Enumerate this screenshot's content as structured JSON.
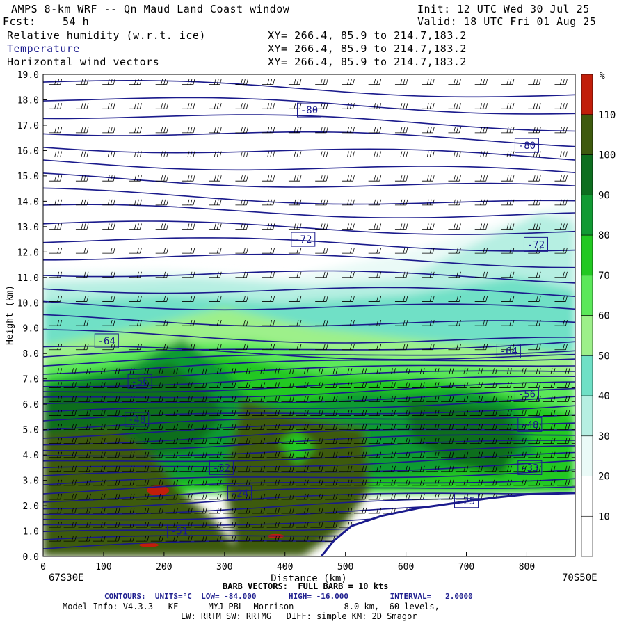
{
  "header": {
    "title": "AMPS 8-km WRF -- Qn Maud Land Coast window",
    "init": "Init: 12 UTC Wed 30 Jul 25",
    "fcst_label": "Fcst:",
    "fcst_value": "54 h",
    "valid": "Valid: 18 UTC Fri 01 Aug 25",
    "fields": [
      {
        "name": "Relative humidity (w.r.t. ice)",
        "xy": "XY= 266.4, 85.9 to 214.7,183.2"
      },
      {
        "name": "Temperature",
        "xy": "XY= 266.4, 85.9 to 214.7,183.2"
      },
      {
        "name": "Horizontal wind vectors",
        "xy": "XY= 266.4, 85.9 to 214.7,183.2"
      }
    ]
  },
  "chart_data": {
    "type": "cross-section",
    "xlabel": "Distance (km)",
    "ylabel": "Height (km)",
    "xlim": [
      0,
      880
    ],
    "ylim": [
      0,
      19
    ],
    "x_ticks": [
      0,
      100,
      200,
      300,
      400,
      500,
      600,
      700,
      800
    ],
    "y_ticks": [
      "0.0",
      "1.0",
      "2.0",
      "3.0",
      "4.0",
      "5.0",
      "6.0",
      "7.0",
      "8.0",
      "9.0",
      "10.0",
      "11.0",
      "12.0",
      "13.0",
      "14.0",
      "15.0",
      "16.0",
      "17.0",
      "18.0",
      "19.0"
    ],
    "left_endpoint": "67S30E",
    "right_endpoint": "70S50E",
    "colorbar": {
      "unit": "%",
      "levels": [
        10,
        20,
        30,
        40,
        50,
        60,
        70,
        80,
        90,
        100,
        110
      ],
      "colors": [
        "#ffffff",
        "#ffffff",
        "#eafaf7",
        "#b6efe2",
        "#6fe0c6",
        "#9df08a",
        "#5be85a",
        "#22c822",
        "#119a33",
        "#0d6e1f",
        "#3e5a0e",
        "#c11e0a"
      ]
    },
    "contour_labels": [
      {
        "text": "-80",
        "x": 440,
        "y": 17.6
      },
      {
        "text": "-80",
        "x": 800,
        "y": 16.2
      },
      {
        "text": "-72",
        "x": 430,
        "y": 12.5
      },
      {
        "text": "-72",
        "x": 815,
        "y": 12.3
      },
      {
        "text": "-64",
        "x": 105,
        "y": 8.5
      },
      {
        "text": "-64",
        "x": 770,
        "y": 8.1
      },
      {
        "text": "-56",
        "x": 160,
        "y": 6.9
      },
      {
        "text": "-56",
        "x": 800,
        "y": 6.4
      },
      {
        "text": "-48",
        "x": 155,
        "y": 5.4
      },
      {
        "text": "-48",
        "x": 805,
        "y": 5.2
      },
      {
        "text": "-32",
        "x": 295,
        "y": 3.5
      },
      {
        "text": "-33",
        "x": 805,
        "y": 3.5
      },
      {
        "text": "-24",
        "x": 325,
        "y": 2.5
      },
      {
        "text": "-51",
        "x": 225,
        "y": 1.0
      },
      {
        "text": "-25",
        "x": 700,
        "y": 2.2
      }
    ],
    "terrain_profile": [
      [
        0,
        0
      ],
      [
        460,
        0
      ],
      [
        480,
        0.6
      ],
      [
        510,
        1.2
      ],
      [
        560,
        1.6
      ],
      [
        620,
        1.9
      ],
      [
        680,
        2.1
      ],
      [
        740,
        2.3
      ],
      [
        800,
        2.45
      ],
      [
        880,
        2.5
      ]
    ]
  },
  "footer": {
    "barb_line": "BARB VECTORS:  FULL BARB = 10 kts",
    "contours_line": "CONTOURS:  UNITS=°C  LOW= -84.000       HIGH= -16.000         INTERVAL=   2.0000",
    "model_line1": "Model Info: V4.3.3   KF      MYJ PBL  Morrison          8.0 km,  60 levels,",
    "model_line2": "LW: RRTM SW: RRTMG   DIFF: simple KM: 2D Smagor"
  }
}
